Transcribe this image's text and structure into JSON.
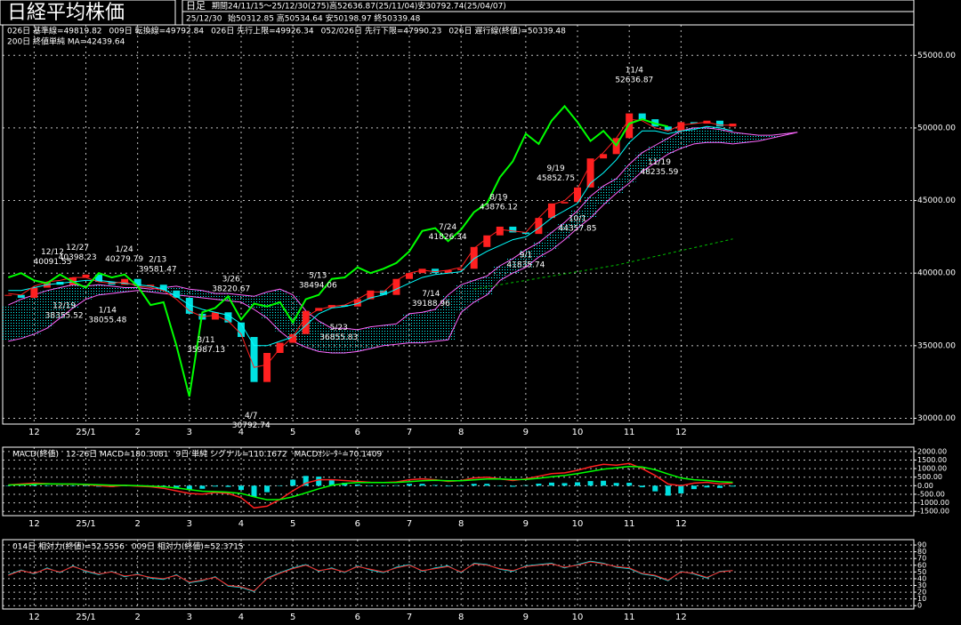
{
  "header": {
    "title": "日経平均株価",
    "period_kind": "日足",
    "period": "期間24/11/15～25/12/30(275)高52636.87(25/11/04)安30792.74(25/04/07)",
    "date": "25/12/30",
    "ohlc": "始50312.85 高50534.64 安50198.97 終50339.48"
  },
  "chart_data": [
    {
      "type": "ichimoku",
      "categories": [
        null,
        null,
        "12",
        null,
        null,
        null,
        "25/1",
        null,
        null,
        null,
        "2",
        null,
        null,
        null,
        "3",
        null,
        null,
        null,
        "4",
        null,
        null,
        null,
        "5",
        null,
        null,
        null,
        null,
        "6",
        null,
        null,
        null,
        "7",
        null,
        null,
        null,
        "8",
        null,
        null,
        null,
        null,
        "9",
        null,
        null,
        null,
        "10",
        null,
        null,
        null,
        "11",
        null,
        null,
        null,
        "12",
        null,
        null,
        null,
        null,
        null,
        null,
        null,
        null,
        null
      ],
      "close": {
        "up_color": "#ff2020",
        "down_color": "#00e0e0",
        "values": [
          38500,
          38300,
          39000,
          39400,
          39200,
          39700,
          39900,
          39400,
          39200,
          39600,
          39100,
          39200,
          38800,
          38300,
          37200,
          36800,
          37300,
          36600,
          35600,
          32500,
          34500,
          35200,
          35800,
          37400,
          37600,
          37800,
          37700,
          38200,
          38800,
          38500,
          39600,
          40000,
          40300,
          40000,
          40200,
          40300,
          41800,
          42600,
          43200,
          42800,
          42700,
          43800,
          44800,
          44900,
          45900,
          47900,
          48200,
          49300,
          51000,
          50600,
          50100,
          49800,
          50400,
          50300,
          50500,
          50100,
          50300,
          null,
          null,
          null,
          null,
          null
        ]
      },
      "series": [
        {
          "name": "026日 基準線=49819.82",
          "color": "#00ffff",
          "values": [
            38800,
            38800,
            39000,
            39200,
            39300,
            39400,
            39500,
            39500,
            39400,
            39300,
            39200,
            39100,
            38900,
            38400,
            37800,
            37500,
            37300,
            37100,
            36500,
            35000,
            35000,
            35300,
            35600,
            36400,
            37200,
            37600,
            37700,
            37900,
            38300,
            38500,
            38900,
            39300,
            39700,
            39900,
            40000,
            40100,
            41000,
            41500,
            41900,
            42300,
            42500,
            43100,
            43800,
            44300,
            44800,
            46200,
            46900,
            47800,
            49000,
            49800,
            49800,
            49600,
            49800,
            49900,
            50100,
            50000,
            49800,
            null,
            null,
            null,
            null,
            null
          ]
        },
        {
          "name": "009日 転換線=49792.84",
          "color": "#ff2020",
          "values": [
            38600,
            38500,
            39100,
            39400,
            39500,
            39700,
            39700,
            39400,
            39300,
            39400,
            39100,
            39000,
            38800,
            38200,
            37400,
            37000,
            37100,
            36700,
            35800,
            33500,
            33700,
            34800,
            35600,
            37000,
            37500,
            37700,
            37800,
            38200,
            38700,
            38700,
            39500,
            40000,
            40200,
            40100,
            40200,
            40400,
            41700,
            42400,
            43000,
            42900,
            42800,
            43800,
            44700,
            45000,
            45800,
            47500,
            48300,
            49300,
            50600,
            50500,
            50000,
            49800,
            50200,
            50300,
            50400,
            50200,
            50200,
            null,
            null,
            null,
            null,
            null
          ]
        },
        {
          "name": "026日 遅行線(終値)=50339.48",
          "color": "#00ff00",
          "values": [
            39700,
            40000,
            39500,
            39300,
            39900,
            39400,
            39000,
            40000,
            39700,
            39900,
            39100,
            37800,
            38000,
            35000,
            31500,
            37300,
            37600,
            38400,
            36800,
            37900,
            37700,
            38000,
            36600,
            38200,
            38500,
            39600,
            39700,
            40400,
            40000,
            40300,
            40700,
            41500,
            42900,
            43100,
            42200,
            43000,
            44200,
            44800,
            46600,
            47700,
            49600,
            48900,
            50500,
            51500,
            50400,
            49100,
            49800,
            48800,
            50300,
            50600,
            50300,
            50100,
            null,
            null,
            null,
            null,
            null,
            null,
            null,
            null,
            null,
            null
          ]
        },
        {
          "name": "200日 終値単純 MA=42439.64",
          "color": "#00c000",
          "dashed": true,
          "values": [
            null,
            null,
            null,
            null,
            null,
            null,
            null,
            null,
            null,
            null,
            null,
            null,
            null,
            null,
            null,
            null,
            null,
            null,
            null,
            null,
            null,
            null,
            null,
            null,
            null,
            null,
            null,
            null,
            null,
            null,
            null,
            null,
            null,
            null,
            null,
            null,
            38900,
            39050,
            39200,
            39350,
            39500,
            39650,
            39800,
            39950,
            40100,
            40250,
            40400,
            40550,
            40750,
            40950,
            41150,
            41350,
            41550,
            41750,
            41950,
            42150,
            42350,
            null,
            null,
            null,
            null,
            null
          ]
        }
      ],
      "cloud": {
        "fill": "#00ffff",
        "upper": {
          "name": "026日 先行上限=49926.34",
          "color": "#ff66ff",
          "values": [
            37800,
            38200,
            38500,
            38800,
            39000,
            39200,
            39100,
            39200,
            39100,
            39000,
            39000,
            38900,
            39000,
            39100,
            38900,
            38800,
            38600,
            38600,
            38500,
            38400,
            38700,
            38900,
            38500,
            37400,
            36700,
            36200,
            36200,
            36100,
            36300,
            36400,
            36500,
            37200,
            37300,
            37500,
            38500,
            39200,
            39500,
            39800,
            40500,
            41000,
            41600,
            42100,
            42800,
            43500,
            44300,
            45300,
            46000,
            46500,
            47500,
            48300,
            48800,
            49300,
            49800,
            50000,
            50000,
            49900,
            49700,
            49600,
            49500,
            49500,
            49600,
            49700
          ]
        },
        "lower": {
          "name": "052/026日 先行下限=47990.23",
          "color": "#ff66ff",
          "values": [
            35300,
            35500,
            35800,
            36200,
            36900,
            37600,
            38200,
            38500,
            38600,
            38700,
            38800,
            38700,
            38600,
            38500,
            38400,
            38300,
            38200,
            38100,
            38000,
            37500,
            36900,
            36000,
            35300,
            34900,
            34600,
            34500,
            34500,
            34600,
            34800,
            35000,
            35100,
            35200,
            35200,
            35300,
            35400,
            37300,
            38000,
            38500,
            39500,
            40000,
            40400,
            41100,
            41600,
            42300,
            43100,
            43800,
            44700,
            45500,
            46200,
            47000,
            47600,
            48200,
            48600,
            48900,
            49000,
            49000,
            48900,
            49000,
            49100,
            49300,
            49500,
            49700
          ]
        }
      },
      "annotations": [
        {
          "date": "12/12",
          "value": 40091.55,
          "color": "#ff2020"
        },
        {
          "date": "12/19",
          "value": 38355.52,
          "color": "#00e0e0"
        },
        {
          "date": "12/27",
          "value": 40398.23,
          "color": "#ff2020"
        },
        {
          "date": "1/14",
          "value": 38055.48,
          "color": "#00e0e0"
        },
        {
          "date": "1/24",
          "value": 40279.79,
          "color": "#ff2020"
        },
        {
          "date": "2/13",
          "value": 39581.47,
          "color": "#ff2020"
        },
        {
          "date": "3/11",
          "value": 35987.13,
          "color": "#00e0e0"
        },
        {
          "date": "3/26",
          "value": 38220.67,
          "color": "#ff2020"
        },
        {
          "date": "4/7",
          "value": 30792.74,
          "color": "#00e0e0"
        },
        {
          "date": "5/13",
          "value": 38494.06,
          "color": "#ff2020"
        },
        {
          "date": "5/23",
          "value": 36855.83,
          "color": "#00e0e0"
        },
        {
          "date": "7/14",
          "value": 39188.96,
          "color": "#00e0e0"
        },
        {
          "date": "7/24",
          "value": 41826.34,
          "color": "#ff2020"
        },
        {
          "date": "8/19",
          "value": 43876.12,
          "color": "#ff2020"
        },
        {
          "date": "9/1",
          "value": 41835.74,
          "color": "#00e0e0"
        },
        {
          "date": "9/19",
          "value": 45852.75,
          "color": "#ff2020"
        },
        {
          "date": "10/1",
          "value": 44357.85,
          "color": "#00e0e0"
        },
        {
          "date": "11/4",
          "value": 52636.87,
          "color": "#ff2020"
        },
        {
          "date": "11/19",
          "value": 48235.59,
          "color": "#00e0e0"
        }
      ],
      "ylim": [
        29600,
        57100
      ],
      "yticks": [
        {
          "value": 30000,
          "label": "30000.00"
        },
        {
          "value": 35000,
          "label": "35000.00"
        },
        {
          "value": 40000,
          "label": "40000.00"
        },
        {
          "value": 45000,
          "label": "45000.00"
        },
        {
          "value": 50000,
          "label": "50000.00"
        },
        {
          "value": 55000,
          "label": "55000.00"
        }
      ],
      "grid": true
    },
    {
      "type": "macd",
      "title": "MACD(終値)",
      "series": [
        {
          "name": "12-26日 MACD=180.3081",
          "color": "#ff2020",
          "values": [
            50,
            100,
            150,
            120,
            80,
            100,
            60,
            0,
            -50,
            20,
            -30,
            -60,
            -150,
            -300,
            -450,
            -500,
            -400,
            -450,
            -700,
            -1300,
            -1200,
            -800,
            -300,
            150,
            350,
            350,
            300,
            250,
            200,
            180,
            220,
            350,
            400,
            350,
            250,
            300,
            450,
            500,
            400,
            300,
            400,
            550,
            700,
            750,
            900,
            1100,
            1250,
            1200,
            1300,
            1000,
            600,
            100,
            0,
            150,
            200,
            100,
            150
          ]
        },
        {
          "name": "9日 単純 シグナル=110.1672",
          "color": "#00ff00",
          "values": [
            40,
            60,
            90,
            110,
            100,
            95,
            85,
            60,
            30,
            20,
            0,
            -20,
            -60,
            -130,
            -230,
            -320,
            -350,
            -380,
            -450,
            -650,
            -820,
            -810,
            -650,
            -420,
            -180,
            20,
            130,
            180,
            190,
            190,
            195,
            240,
            290,
            310,
            290,
            290,
            340,
            390,
            390,
            360,
            370,
            430,
            520,
            600,
            700,
            830,
            960,
            1040,
            1130,
            1090,
            930,
            680,
            450,
            350,
            300,
            230,
            200
          ]
        }
      ],
      "histogram": {
        "name": "MACDｵｼﾚｰﾀｰ=70.1409",
        "color": "#00e0e0",
        "values": [
          10,
          40,
          60,
          10,
          -20,
          5,
          -25,
          -60,
          -80,
          0,
          -30,
          -40,
          -90,
          -170,
          -220,
          -180,
          -50,
          -70,
          -250,
          -650,
          -380,
          10,
          350,
          570,
          530,
          330,
          170,
          70,
          10,
          -10,
          25,
          110,
          110,
          40,
          -40,
          10,
          110,
          110,
          10,
          -60,
          30,
          120,
          180,
          150,
          200,
          270,
          290,
          160,
          170,
          -90,
          -330,
          -580,
          -450,
          -200,
          -100,
          -130,
          -50
        ]
      },
      "ylim": [
        -1750,
        2250
      ],
      "yticks": [
        {
          "value": -1500,
          "label": "-1500.00"
        },
        {
          "value": -1000,
          "label": "-1000.00"
        },
        {
          "value": -500,
          "label": "-500.00"
        },
        {
          "value": 0,
          "label": "0.00"
        },
        {
          "value": 500,
          "label": "500.00"
        },
        {
          "value": 1000,
          "label": "1000.00"
        },
        {
          "value": 1500,
          "label": "1500.00"
        },
        {
          "value": 2000,
          "label": "2000.00"
        }
      ],
      "grid": true
    },
    {
      "type": "line",
      "series": [
        {
          "name": "014日 相対力(終値)=52.5556",
          "color": "#ff2020",
          "values": [
            45,
            52,
            48,
            55,
            50,
            58,
            52,
            47,
            50,
            44,
            46,
            42,
            40,
            45,
            35,
            38,
            42,
            30,
            28,
            22,
            40,
            48,
            55,
            60,
            52,
            55,
            50,
            58,
            54,
            50,
            56,
            60,
            52,
            55,
            58,
            50,
            62,
            60,
            55,
            52,
            58,
            60,
            62,
            57,
            60,
            65,
            62,
            58,
            56,
            48,
            45,
            38,
            50,
            48,
            42,
            50,
            52
          ]
        },
        {
          "name": "009日 相対力(終値)=52.3715",
          "color": "#00e0e0",
          "values": [
            46,
            53,
            47,
            56,
            49,
            59,
            51,
            46,
            51,
            43,
            47,
            41,
            39,
            46,
            34,
            37,
            43,
            29,
            27,
            21,
            41,
            49,
            56,
            61,
            51,
            56,
            49,
            59,
            53,
            49,
            57,
            61,
            51,
            56,
            59,
            49,
            63,
            61,
            54,
            51,
            59,
            61,
            63,
            56,
            61,
            66,
            63,
            57,
            55,
            47,
            44,
            37,
            51,
            47,
            41,
            51,
            52
          ]
        }
      ],
      "ylim": [
        -5,
        98
      ],
      "yticks": [
        0,
        10,
        20,
        30,
        40,
        50,
        60,
        70,
        80,
        90
      ],
      "grid": true
    }
  ]
}
